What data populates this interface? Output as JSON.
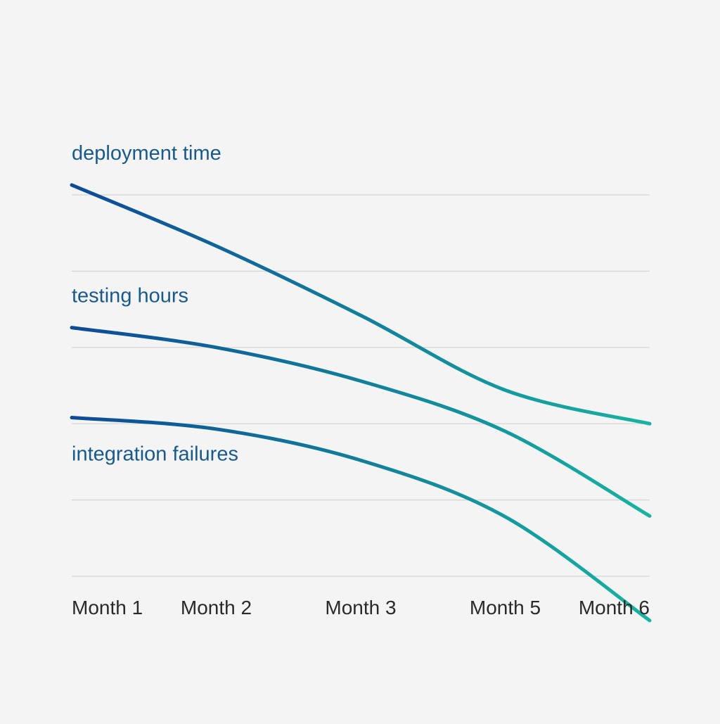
{
  "chart_data": {
    "type": "line",
    "title": "",
    "xlabel": "",
    "ylabel": "",
    "categories": [
      "Month 1",
      "Month 2",
      "Month 3",
      "Month 5",
      "Month 6"
    ],
    "ylim": [
      0,
      5
    ],
    "grid": true,
    "legend": "inline-labels",
    "series": [
      {
        "name": "deployment time",
        "values": [
          5.13,
          4.33,
          3.42,
          2.44,
          2.0
        ]
      },
      {
        "name": "testing hours",
        "values": [
          3.26,
          3.0,
          2.56,
          1.9,
          0.79
        ]
      },
      {
        "name": "integration failures",
        "values": [
          2.08,
          1.93,
          1.52,
          0.78,
          -0.58
        ]
      }
    ],
    "colors": {
      "start": "#0d4a96",
      "end": "#17b3a0",
      "label": "#1a5a8a"
    }
  }
}
